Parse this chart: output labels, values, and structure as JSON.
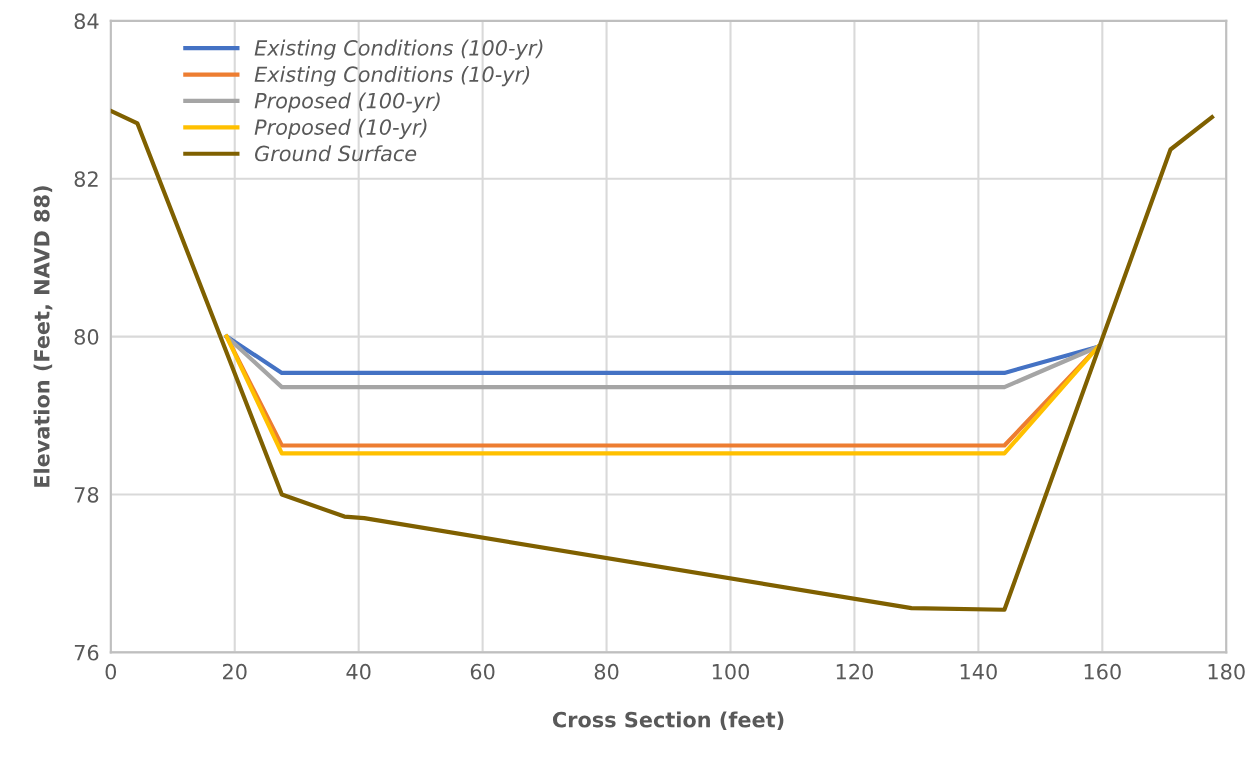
{
  "chart_data": {
    "type": "line",
    "xlabel": "Cross Section (feet)",
    "ylabel": "Elevation (Feet, NAVD 88)",
    "xlim": [
      0,
      180
    ],
    "xticks": [
      0,
      20,
      40,
      60,
      80,
      100,
      120,
      140,
      160,
      180
    ],
    "ylim": [
      76,
      84
    ],
    "yticks": [
      76,
      78,
      80,
      82,
      84
    ],
    "grid": true,
    "legend": "top left",
    "marker": "none",
    "line_style": "solid",
    "series": [
      {
        "name": "Existing Conditions (100-yr)",
        "color": "#4472c4",
        "x": [
          18.7,
          27.6,
          144.2,
          159.3
        ],
        "values": [
          80.0,
          79.54,
          79.54,
          79.87
        ]
      },
      {
        "name": "Existing Conditions (10-yr)",
        "color": "#ed7d31",
        "x": [
          18.7,
          27.6,
          144.2,
          159.3
        ],
        "values": [
          80.0,
          78.62,
          78.62,
          79.87
        ]
      },
      {
        "name": "Proposed (100-yr)",
        "color": "#a5a5a5",
        "x": [
          18.7,
          27.6,
          144.2,
          159.3
        ],
        "values": [
          80.0,
          79.36,
          79.36,
          79.87
        ]
      },
      {
        "name": "Proposed (10-yr)",
        "color": "#ffc000",
        "x": [
          18.7,
          27.6,
          144.2,
          159.3
        ],
        "values": [
          80.0,
          78.52,
          78.52,
          79.87
        ]
      },
      {
        "name": "Ground Surface",
        "color": "#7f6000",
        "x": [
          0,
          4.3,
          27.6,
          37.7,
          40.9,
          129.2,
          144.2,
          171.0,
          177.7
        ],
        "values": [
          82.86,
          82.7,
          78.0,
          77.72,
          77.7,
          76.56,
          76.54,
          82.37,
          82.78
        ]
      }
    ]
  }
}
